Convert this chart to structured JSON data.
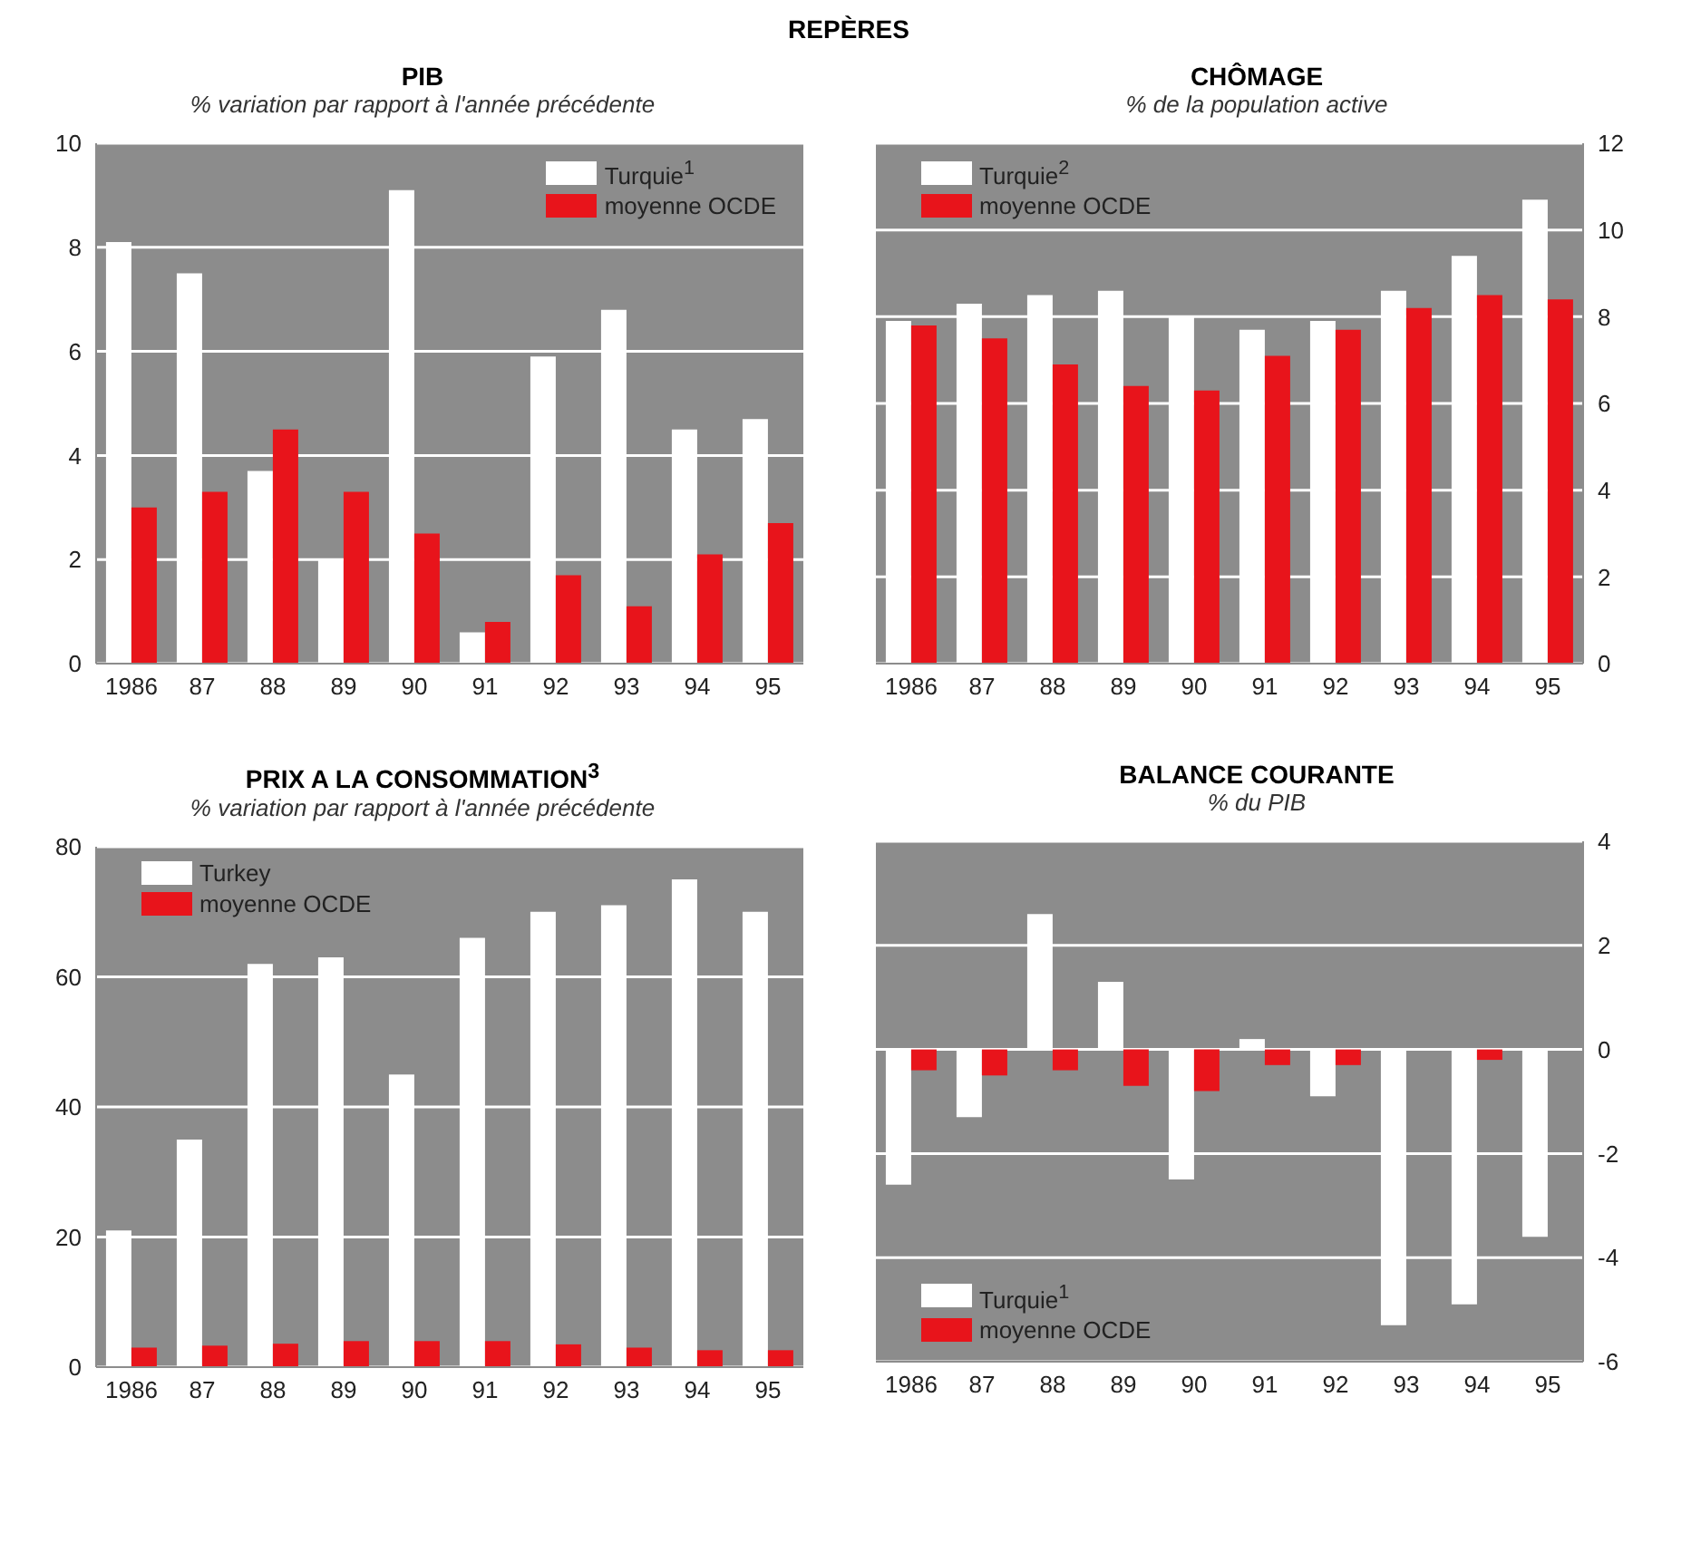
{
  "chart_data": [
    {
      "type": "bar",
      "annotations": [
        "REPÈRES"
      ],
      "title": "PIB",
      "subtitle": "% variation par rapport à l'année précédente",
      "categories": [
        "1986",
        "87",
        "88",
        "89",
        "90",
        "91",
        "92",
        "93",
        "94",
        "95"
      ],
      "series": [
        {
          "name": "Turquie$^{1}$",
          "color": "#ffffff",
          "values": [
            8.1,
            7.5,
            3.7,
            2.0,
            9.1,
            0.6,
            5.9,
            6.8,
            4.5,
            4.7
          ]
        },
        {
          "name": "moyenne OCDE",
          "color": "#e8141b",
          "values": [
            3.0,
            3.3,
            4.5,
            3.3,
            2.5,
            0.8,
            1.7,
            1.1,
            2.1,
            2.7
          ]
        }
      ],
      "ylim": [
        0,
        10
      ],
      "yticks": [
        0,
        2,
        4,
        6,
        8,
        10
      ],
      "grid": "y",
      "legend": "top right"
    },
    {
      "type": "bar",
      "title": "CHÔMAGE",
      "subtitle": "% de la population active",
      "categories": [
        "1986",
        "87",
        "88",
        "89",
        "90",
        "91",
        "92",
        "93",
        "94",
        "95"
      ],
      "series": [
        {
          "name": "Turquie$^{2}$",
          "color": "#ffffff",
          "axis": "y2",
          "values": [
            7.9,
            8.3,
            8.5,
            8.6,
            8.0,
            7.7,
            7.9,
            8.6,
            9.4,
            10.7
          ]
        },
        {
          "name": "moyenne OCDE",
          "color": "#e8141b",
          "axis": "y2",
          "values": [
            7.8,
            7.5,
            6.9,
            6.4,
            6.3,
            7.1,
            7.7,
            8.2,
            8.5,
            8.4
          ]
        }
      ],
      "y2lim": [
        0,
        12
      ],
      "y2ticks": [
        0,
        2,
        4,
        6,
        8,
        10,
        12
      ],
      "grid": "y",
      "legend": "top left"
    },
    {
      "type": "bar",
      "title": "PRIX A LA CONSOMMATION$^{3}$",
      "subtitle": "% variation par rapport à l'année précédente",
      "categories": [
        "1986",
        "87",
        "88",
        "89",
        "90",
        "91",
        "92",
        "93",
        "94",
        "95"
      ],
      "series": [
        {
          "name": "Turkey",
          "color": "#ffffff",
          "values": [
            21,
            35,
            62,
            63,
            45,
            66,
            70,
            71,
            75,
            70
          ]
        },
        {
          "name": "moyenne OCDE",
          "color": "#e8141b",
          "values": [
            3.0,
            3.3,
            3.6,
            4.0,
            4.0,
            4.0,
            3.5,
            3.0,
            2.6,
            2.6
          ]
        }
      ],
      "ylim": [
        0,
        80
      ],
      "yticks": [
        0,
        20,
        40,
        60,
        80
      ],
      "grid": "y",
      "legend": "top left"
    },
    {
      "type": "bar",
      "title": "BALANCE COURANTE",
      "subtitle": "% du PIB",
      "categories": [
        "1986",
        "87",
        "88",
        "89",
        "90",
        "91",
        "92",
        "93",
        "94",
        "95"
      ],
      "series": [
        {
          "name": "Turquie$^{1}$",
          "color": "#ffffff",
          "axis": "y2",
          "values": [
            -2.6,
            -1.3,
            2.6,
            1.3,
            -2.5,
            0.2,
            -0.9,
            -5.3,
            -4.9,
            -3.6
          ]
        },
        {
          "name": "moyenne OCDE",
          "color": "#e8141b",
          "axis": "y2",
          "values": [
            -0.4,
            -0.5,
            -0.4,
            -0.7,
            -0.8,
            -0.3,
            -0.3,
            null,
            -0.2,
            null
          ]
        }
      ],
      "y2lim": [
        -6,
        4
      ],
      "y2ticks": [
        -6,
        -4,
        -2,
        0,
        2,
        4
      ],
      "grid": "y",
      "legend": "bottom left"
    }
  ]
}
